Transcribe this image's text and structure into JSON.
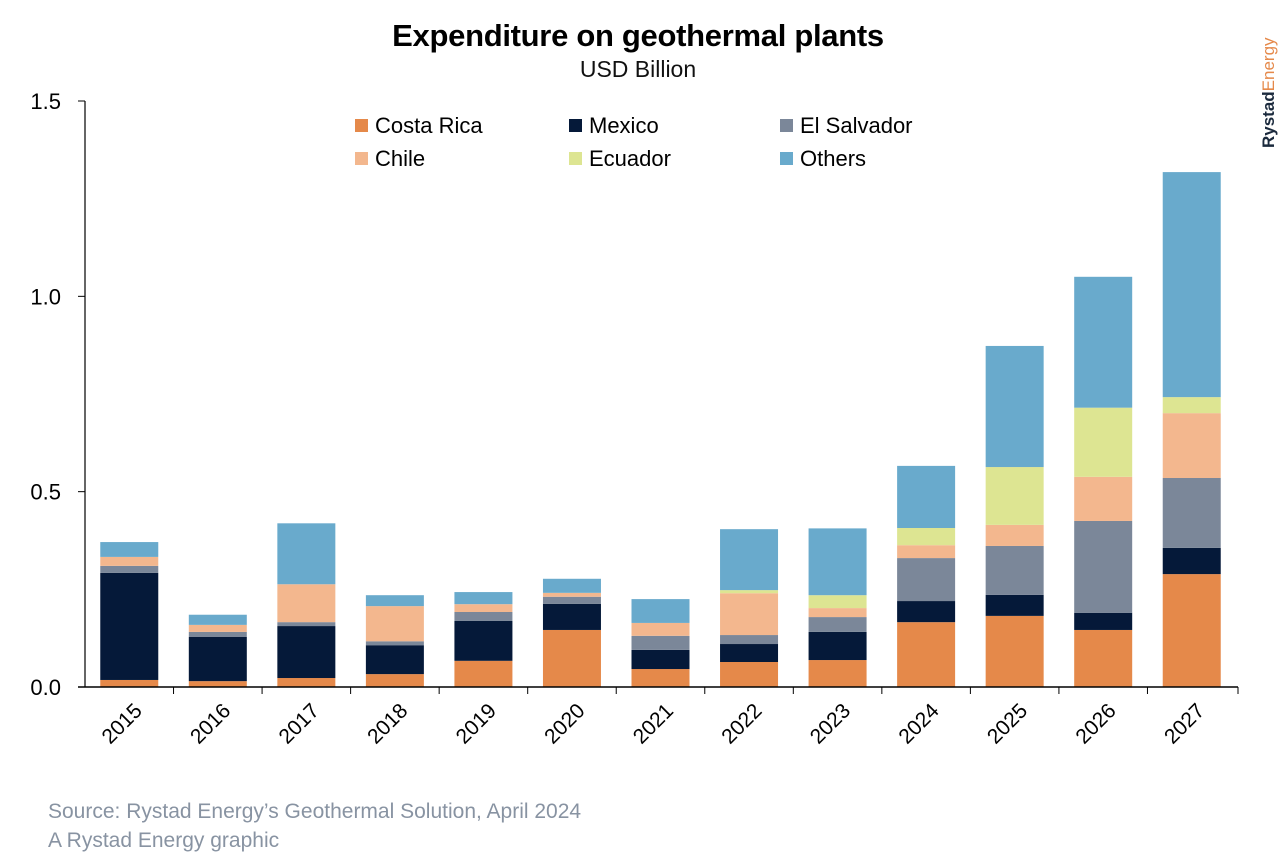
{
  "chart_data": {
    "type": "bar",
    "stacked": true,
    "title": "Expenditure on geothermal plants",
    "subtitle": "USD Billion",
    "xlabel": "",
    "ylabel": "",
    "ylim": [
      0,
      1.5
    ],
    "yticks": [
      "0.0",
      "0.5",
      "1.0",
      "1.5"
    ],
    "ytick_values": [
      0,
      0.5,
      1.0,
      1.5
    ],
    "grid": false,
    "legend_position": "top",
    "categories": [
      "2015",
      "2016",
      "2017",
      "2018",
      "2019",
      "2020",
      "2021",
      "2022",
      "2023",
      "2024",
      "2025",
      "2026",
      "2027"
    ],
    "series": [
      {
        "name": "Costa Rica",
        "color": "#E5894A",
        "values": [
          0.018,
          0.015,
          0.023,
          0.033,
          0.067,
          0.146,
          0.046,
          0.064,
          0.069,
          0.166,
          0.182,
          0.146,
          0.289
        ]
      },
      {
        "name": "Mexico",
        "color": "#051939",
        "values": [
          0.274,
          0.113,
          0.133,
          0.074,
          0.102,
          0.067,
          0.049,
          0.046,
          0.072,
          0.054,
          0.054,
          0.044,
          0.067
        ]
      },
      {
        "name": "El Salvador",
        "color": "#7B8799",
        "values": [
          0.018,
          0.013,
          0.01,
          0.01,
          0.023,
          0.018,
          0.036,
          0.023,
          0.038,
          0.11,
          0.125,
          0.235,
          0.179
        ]
      },
      {
        "name": "Chile",
        "color": "#F3B78E",
        "values": [
          0.023,
          0.018,
          0.097,
          0.09,
          0.02,
          0.01,
          0.033,
          0.107,
          0.023,
          0.033,
          0.054,
          0.113,
          0.166
        ]
      },
      {
        "name": "Ecuador",
        "color": "#DDE592",
        "values": [
          0,
          0,
          0,
          0,
          0,
          0,
          0,
          0.008,
          0.033,
          0.044,
          0.148,
          0.177,
          0.041
        ]
      },
      {
        "name": "Others",
        "color": "#69AACC",
        "values": [
          0.038,
          0.026,
          0.156,
          0.028,
          0.031,
          0.036,
          0.061,
          0.156,
          0.171,
          0.159,
          0.31,
          0.335,
          0.576
        ]
      }
    ]
  },
  "footer": {
    "source": "Source: Rystad Energy’s Geothermal Solution, April 2024",
    "credit": "A Rystad Energy graphic"
  },
  "logo": {
    "text_a": "Rystad",
    "text_b": "Energy",
    "color_a": "#1b2a3d",
    "color_b": "#E5894A"
  }
}
